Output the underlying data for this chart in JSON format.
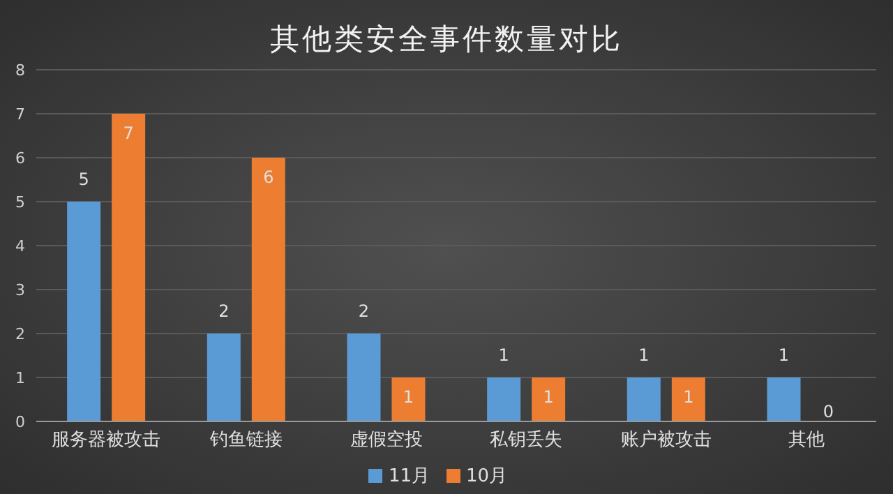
{
  "chart_data": {
    "type": "bar",
    "title": "其他类安全事件数量对比",
    "categories": [
      "服务器被攻击",
      "钓鱼链接",
      "虚假空投",
      "私钥丢失",
      "账户被攻击",
      "其他"
    ],
    "series": [
      {
        "name": "11月",
        "color": "#5b9bd5",
        "values": [
          5,
          2,
          2,
          1,
          1,
          1
        ]
      },
      {
        "name": "10月",
        "color": "#ed7d31",
        "values": [
          7,
          6,
          1,
          1,
          1,
          0
        ]
      }
    ],
    "ylim": [
      0,
      8
    ],
    "yticks": [
      0,
      1,
      2,
      3,
      4,
      5,
      6,
      7,
      8
    ],
    "grid": "y",
    "legend": "bottom",
    "data_labels": true
  }
}
